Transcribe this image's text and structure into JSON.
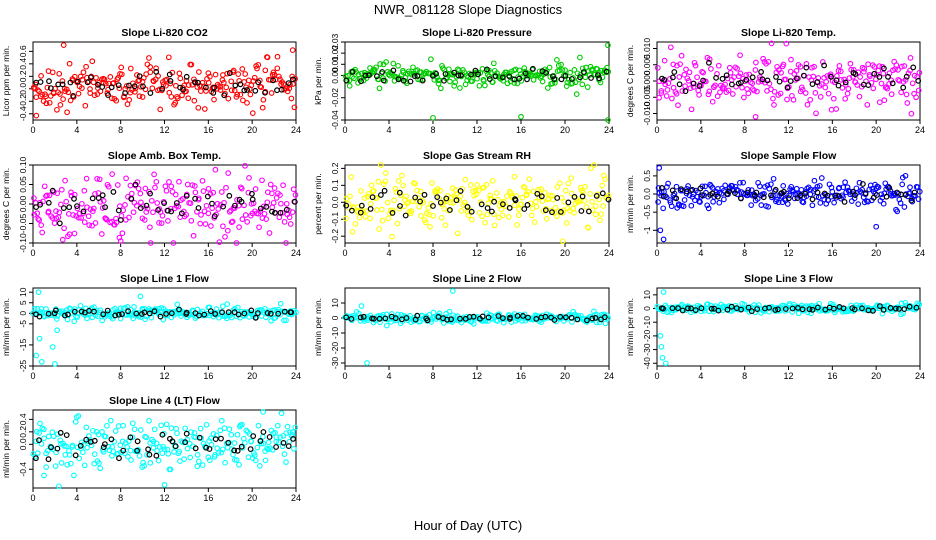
{
  "page": {
    "title": "NWR_081128  Slope Diagnostics",
    "xlabel": "Hour of Day (UTC)"
  },
  "colors": {
    "reference_points": "#000000"
  },
  "chart_data": [
    {
      "type": "scatter",
      "title": "Slope Li-820 CO2",
      "ylabel": "Licor ppm per min.",
      "xlim": [
        0,
        24
      ],
      "ylim": [
        -0.5,
        0.75
      ],
      "xticks": [
        0,
        4,
        8,
        12,
        16,
        20,
        24
      ],
      "yticks": [
        -0.4,
        -0.2,
        0.0,
        0.2,
        0.4,
        0.6
      ],
      "color": "#ff0000",
      "center": 0.05,
      "spread": 0.17,
      "outliers": [
        {
          "x": 2.8,
          "y": 0.7
        },
        {
          "x": 23.7,
          "y": 0.62
        },
        {
          "x": 0.3,
          "y": -0.43
        }
      ]
    },
    {
      "type": "scatter",
      "title": "Slope Li-820 Pressure",
      "ylabel": "kPa per min.",
      "xlim": [
        0,
        24
      ],
      "ylim": [
        -0.04,
        0.03
      ],
      "xticks": [
        0,
        4,
        8,
        12,
        16,
        20,
        24
      ],
      "yticks": [
        -0.04,
        -0.02,
        0.0,
        0.01,
        0.02,
        0.03
      ],
      "color": "#00cc00",
      "center": 0.0,
      "spread": 0.005,
      "outliers": [
        {
          "x": 23.9,
          "y": 0.027
        },
        {
          "x": 23.9,
          "y": -0.04
        },
        {
          "x": 8.0,
          "y": -0.038
        },
        {
          "x": 16.0,
          "y": -0.037
        }
      ]
    },
    {
      "type": "scatter",
      "title": "Slope Li-820 Temp.",
      "ylabel": "degrees C per min.",
      "xlim": [
        0,
        24
      ],
      "ylim": [
        -0.012,
        0.012
      ],
      "xticks": [
        0,
        4,
        8,
        12,
        16,
        20,
        24
      ],
      "yticks": [
        -0.01,
        -0.005,
        0.0,
        0.005,
        0.01
      ],
      "ytick_labels": [
        "-0.010",
        "-0.005",
        "0.000",
        "0.005",
        "0.010"
      ],
      "color": "#ff00ff",
      "center": 0.0,
      "spread": 0.004,
      "outliers": [
        {
          "x": 11.8,
          "y": 0.0115
        },
        {
          "x": 9.0,
          "y": -0.011
        }
      ]
    },
    {
      "type": "scatter",
      "title": "Slope Amb. Box Temp.",
      "ylabel": "degrees C per min.",
      "xlim": [
        0,
        24
      ],
      "ylim": [
        -0.1,
        0.1
      ],
      "xticks": [
        0,
        4,
        8,
        12,
        16,
        20,
        24
      ],
      "yticks": [
        -0.1,
        -0.05,
        0.0,
        0.05,
        0.1
      ],
      "ytick_labels": [
        "-0.10",
        "-0.05",
        "0.00",
        "0.05",
        "0.10"
      ],
      "color": "#ff00ff",
      "center": 0.0,
      "spread": 0.04,
      "outliers": [
        {
          "x": 8.0,
          "y": -0.095
        }
      ]
    },
    {
      "type": "scatter",
      "title": "Slope Gas Stream RH",
      "ylabel": "percent per min.",
      "xlim": [
        0,
        24
      ],
      "ylim": [
        -0.24,
        0.22
      ],
      "xticks": [
        0,
        4,
        8,
        12,
        16,
        20,
        24
      ],
      "yticks": [
        -0.2,
        -0.1,
        0.0,
        0.1,
        0.2
      ],
      "color": "#ffff00",
      "center": 0.0,
      "spread": 0.08,
      "outliers": [
        {
          "x": 19.8,
          "y": -0.23
        }
      ]
    },
    {
      "type": "scatter",
      "title": "Slope Sample Flow",
      "ylabel": "ml/min per min.",
      "xlim": [
        0,
        24
      ],
      "ylim": [
        -1.35,
        0.8
      ],
      "xticks": [
        0,
        4,
        8,
        12,
        16,
        20,
        24
      ],
      "yticks": [
        -1.0,
        -0.5,
        0.0,
        0.5
      ],
      "color": "#0000ff",
      "center": 0.0,
      "spread": 0.17,
      "outliers": [
        {
          "x": 0.3,
          "y": -1.0
        },
        {
          "x": 0.6,
          "y": -1.25
        },
        {
          "x": 0.2,
          "y": 0.72
        },
        {
          "x": 20.0,
          "y": -0.9
        }
      ]
    },
    {
      "type": "scatter",
      "title": "Slope Line 1 Flow",
      "ylabel": "ml/min per min.",
      "xlim": [
        0,
        24
      ],
      "ylim": [
        -25,
        12
      ],
      "xticks": [
        0,
        4,
        8,
        12,
        16,
        20,
        24
      ],
      "yticks": [
        -25,
        -15,
        -5,
        0,
        5,
        10
      ],
      "color": "#00ffff",
      "center": 0.0,
      "spread": 1.6,
      "outliers": [
        {
          "x": 0.3,
          "y": -20
        },
        {
          "x": 0.8,
          "y": -23
        },
        {
          "x": 2.0,
          "y": -24
        },
        {
          "x": 0.5,
          "y": 10
        },
        {
          "x": 2.2,
          "y": -8
        },
        {
          "x": 1.8,
          "y": -16
        },
        {
          "x": 9.8,
          "y": 8
        },
        {
          "x": 0.6,
          "y": -12
        }
      ]
    },
    {
      "type": "scatter",
      "title": "Slope Line 2 Flow",
      "ylabel": "ml/min per min.",
      "xlim": [
        0,
        24
      ],
      "ylim": [
        -32,
        20
      ],
      "xticks": [
        0,
        4,
        8,
        12,
        16,
        20,
        24
      ],
      "yticks": [
        -30,
        -20,
        -10,
        0,
        10
      ],
      "color": "#00ffff",
      "center": 0.0,
      "spread": 1.6,
      "outliers": [
        {
          "x": 2.0,
          "y": -30
        },
        {
          "x": 9.8,
          "y": 18
        },
        {
          "x": 1.5,
          "y": 8
        },
        {
          "x": 3.8,
          "y": -5
        }
      ]
    },
    {
      "type": "scatter",
      "title": "Slope Line 3 Flow",
      "ylabel": "ml/min per min.",
      "xlim": [
        0,
        24
      ],
      "ylim": [
        -42,
        15
      ],
      "xticks": [
        0,
        4,
        8,
        12,
        16,
        20,
        24
      ],
      "yticks": [
        -40,
        -30,
        -20,
        -10,
        0,
        10
      ],
      "color": "#00ffff",
      "center": 0.0,
      "spread": 1.6,
      "outliers": [
        {
          "x": 0.5,
          "y": -36
        },
        {
          "x": 0.8,
          "y": -40
        },
        {
          "x": 0.3,
          "y": -20
        },
        {
          "x": 0.6,
          "y": 12
        },
        {
          "x": 0.4,
          "y": -28
        }
      ]
    },
    {
      "type": "scatter",
      "title": "Slope Line 4 (LT) Flow",
      "ylabel": "ml/min per min.",
      "xlim": [
        0,
        24
      ],
      "ylim": [
        -0.7,
        0.55
      ],
      "xticks": [
        0,
        4,
        8,
        12,
        16,
        20,
        24
      ],
      "yticks": [
        -0.4,
        0.0,
        0.2,
        0.4
      ],
      "ytick_labels": [
        "-0.4",
        "0.0",
        "0.2",
        "0.4"
      ],
      "color": "#00ffff",
      "center": 0.0,
      "spread": 0.2,
      "outliers": [
        {
          "x": 12.0,
          "y": -0.65
        },
        {
          "x": 1.0,
          "y": -0.5
        },
        {
          "x": 21.0,
          "y": 0.52
        }
      ]
    }
  ]
}
